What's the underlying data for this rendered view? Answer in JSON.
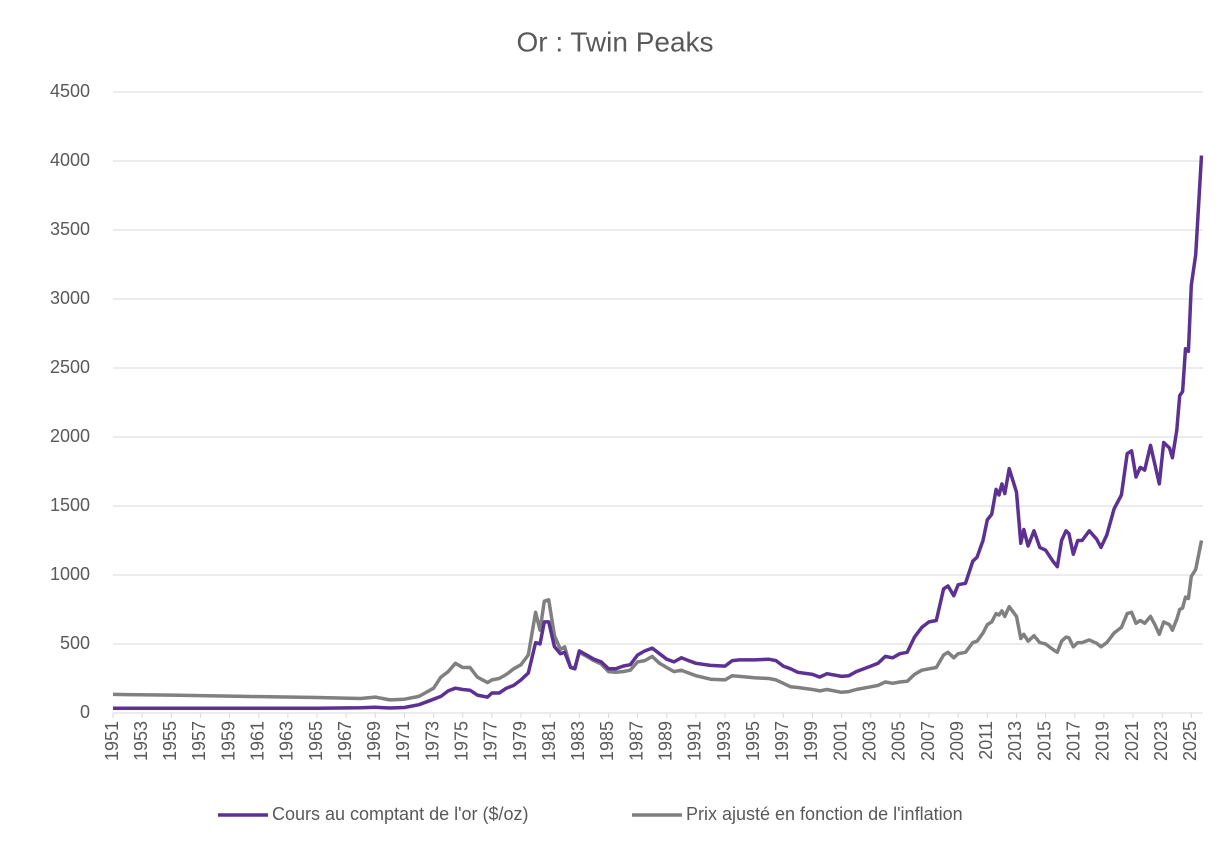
{
  "chart_data": {
    "type": "line",
    "title": "Or : Twin Peaks",
    "x": [
      1951,
      1955,
      1960,
      1965,
      1968,
      1969,
      1970,
      1971,
      1972,
      1973,
      1973.5,
      1974,
      1974.5,
      1975,
      1975.5,
      1976,
      1976.7,
      1977,
      1977.5,
      1978,
      1978.5,
      1979,
      1979.5,
      1980,
      1980.3,
      1980.6,
      1980.9,
      1981.3,
      1981.7,
      1982,
      1982.4,
      1982.7,
      1983,
      1983.5,
      1984,
      1984.5,
      1985,
      1985.5,
      1986,
      1986.5,
      1987,
      1987.5,
      1988,
      1988.5,
      1989,
      1989.5,
      1990,
      1990.5,
      1991,
      1992,
      1993,
      1993.5,
      1994,
      1995,
      1996,
      1996.5,
      1997,
      1997.5,
      1998,
      1999,
      1999.5,
      2000,
      2001,
      2001.5,
      2002,
      2003,
      2003.5,
      2004,
      2004.5,
      2005,
      2005.5,
      2006,
      2006.5,
      2007,
      2007.5,
      2008,
      2008.3,
      2008.7,
      2009,
      2009.5,
      2010,
      2010.3,
      2010.7,
      2011,
      2011.3,
      2011.6,
      2011.8,
      2012,
      2012.2,
      2012.5,
      2013,
      2013.3,
      2013.5,
      2013.8,
      2014.2,
      2014.6,
      2015,
      2015.5,
      2015.8,
      2016.1,
      2016.4,
      2016.6,
      2016.9,
      2017.2,
      2017.5,
      2018,
      2018.5,
      2018.8,
      2019.2,
      2019.7,
      2020.2,
      2020.6,
      2020.9,
      2021.2,
      2021.5,
      2021.8,
      2022.2,
      2022.5,
      2022.8,
      2023.1,
      2023.5,
      2023.7,
      2024,
      2024.2,
      2024.4,
      2024.6,
      2024.8,
      2025,
      2025.3,
      2025.7
    ],
    "series": [
      {
        "name": "Cours au comptant de l'or ($/oz)",
        "color": "#5c3191",
        "values": [
          35,
          35,
          35,
          35,
          38,
          41,
          36,
          40,
          60,
          100,
          120,
          160,
          180,
          170,
          165,
          130,
          115,
          145,
          145,
          180,
          200,
          240,
          290,
          510,
          500,
          660,
          660,
          480,
          430,
          440,
          330,
          320,
          450,
          420,
          390,
          370,
          320,
          320,
          340,
          350,
          420,
          450,
          470,
          430,
          390,
          370,
          400,
          380,
          360,
          345,
          340,
          380,
          385,
          385,
          390,
          380,
          340,
          320,
          295,
          280,
          260,
          285,
          265,
          270,
          300,
          340,
          360,
          410,
          400,
          430,
          440,
          550,
          620,
          660,
          670,
          900,
          920,
          850,
          930,
          940,
          1100,
          1130,
          1250,
          1400,
          1440,
          1620,
          1580,
          1660,
          1590,
          1770,
          1600,
          1230,
          1330,
          1210,
          1320,
          1200,
          1180,
          1100,
          1060,
          1250,
          1320,
          1300,
          1150,
          1250,
          1250,
          1320,
          1260,
          1200,
          1290,
          1480,
          1580,
          1880,
          1900,
          1710,
          1780,
          1760,
          1940,
          1800,
          1660,
          1960,
          1920,
          1850,
          2050,
          2300,
          2330,
          2640,
          2620,
          3100,
          3320,
          4040
        ]
      },
      {
        "name": "Prix ajusté en fonction de l'inflation",
        "color": "#808080",
        "values": [
          135,
          130,
          120,
          112,
          105,
          115,
          95,
          100,
          120,
          180,
          260,
          300,
          360,
          330,
          330,
          260,
          220,
          240,
          250,
          280,
          320,
          350,
          420,
          730,
          600,
          810,
          820,
          560,
          460,
          480,
          330,
          330,
          440,
          410,
          380,
          355,
          300,
          295,
          300,
          310,
          370,
          380,
          410,
          360,
          330,
          300,
          310,
          290,
          270,
          245,
          240,
          270,
          265,
          255,
          250,
          240,
          215,
          190,
          185,
          170,
          160,
          170,
          150,
          155,
          170,
          190,
          200,
          225,
          215,
          225,
          230,
          280,
          310,
          320,
          330,
          420,
          440,
          400,
          430,
          440,
          510,
          520,
          580,
          640,
          660,
          720,
          710,
          740,
          700,
          770,
          700,
          540,
          570,
          520,
          560,
          510,
          500,
          460,
          440,
          520,
          550,
          545,
          480,
          510,
          510,
          530,
          505,
          480,
          510,
          580,
          620,
          720,
          730,
          650,
          670,
          650,
          700,
          640,
          570,
          660,
          640,
          600,
          680,
          750,
          760,
          840,
          830,
          990,
          1040,
          1250
        ]
      }
    ],
    "xlim": [
      1951,
      2025.8
    ],
    "xticks": [
      1951,
      1953,
      1955,
      1957,
      1959,
      1961,
      1963,
      1965,
      1967,
      1969,
      1971,
      1973,
      1975,
      1977,
      1979,
      1981,
      1983,
      1985,
      1987,
      1989,
      1991,
      1993,
      1995,
      1997,
      1999,
      2001,
      2003,
      2005,
      2007,
      2009,
      2011,
      2013,
      2015,
      2017,
      2019,
      2021,
      2023,
      2025
    ],
    "ylim": [
      0,
      4500
    ],
    "yticks": [
      0,
      500,
      1000,
      1500,
      2000,
      2500,
      3000,
      3500,
      4000,
      4500
    ],
    "grid": true
  }
}
